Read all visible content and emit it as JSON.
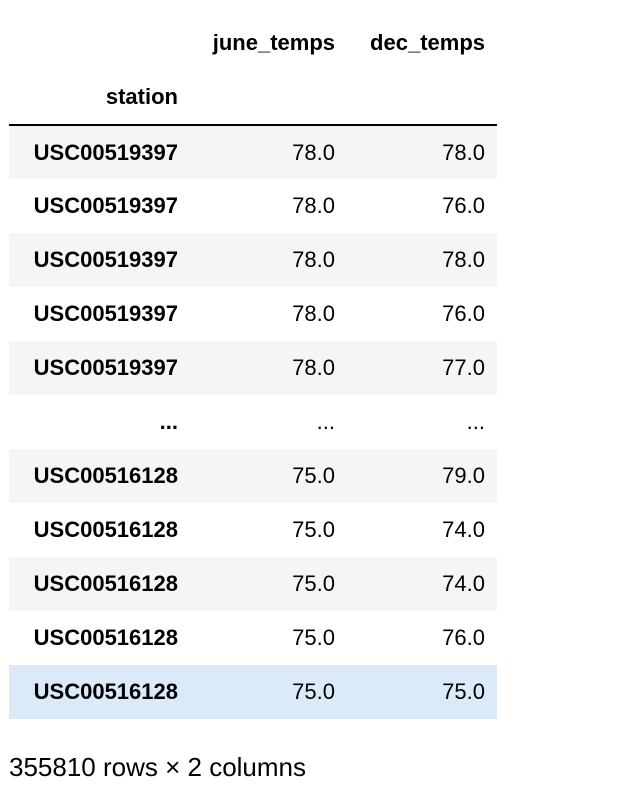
{
  "table": {
    "columns": [
      "june_temps",
      "dec_temps"
    ],
    "index_name": "station",
    "rows": [
      {
        "index": "USC00519397",
        "june_temps": "78.0",
        "dec_temps": "78.0"
      },
      {
        "index": "USC00519397",
        "june_temps": "78.0",
        "dec_temps": "76.0"
      },
      {
        "index": "USC00519397",
        "june_temps": "78.0",
        "dec_temps": "78.0"
      },
      {
        "index": "USC00519397",
        "june_temps": "78.0",
        "dec_temps": "76.0"
      },
      {
        "index": "USC00519397",
        "june_temps": "78.0",
        "dec_temps": "77.0"
      },
      {
        "index": "...",
        "june_temps": "...",
        "dec_temps": "..."
      },
      {
        "index": "USC00516128",
        "june_temps": "75.0",
        "dec_temps": "79.0"
      },
      {
        "index": "USC00516128",
        "june_temps": "75.0",
        "dec_temps": "74.0"
      },
      {
        "index": "USC00516128",
        "june_temps": "75.0",
        "dec_temps": "74.0"
      },
      {
        "index": "USC00516128",
        "june_temps": "75.0",
        "dec_temps": "76.0"
      },
      {
        "index": "USC00516128",
        "june_temps": "75.0",
        "dec_temps": "75.0"
      }
    ],
    "highlighted_row": 10,
    "highlight_color": "#dbeaf9",
    "stripe_color": "#f5f5f5"
  },
  "footer": {
    "shape_text": "355810 rows × 2 columns"
  }
}
